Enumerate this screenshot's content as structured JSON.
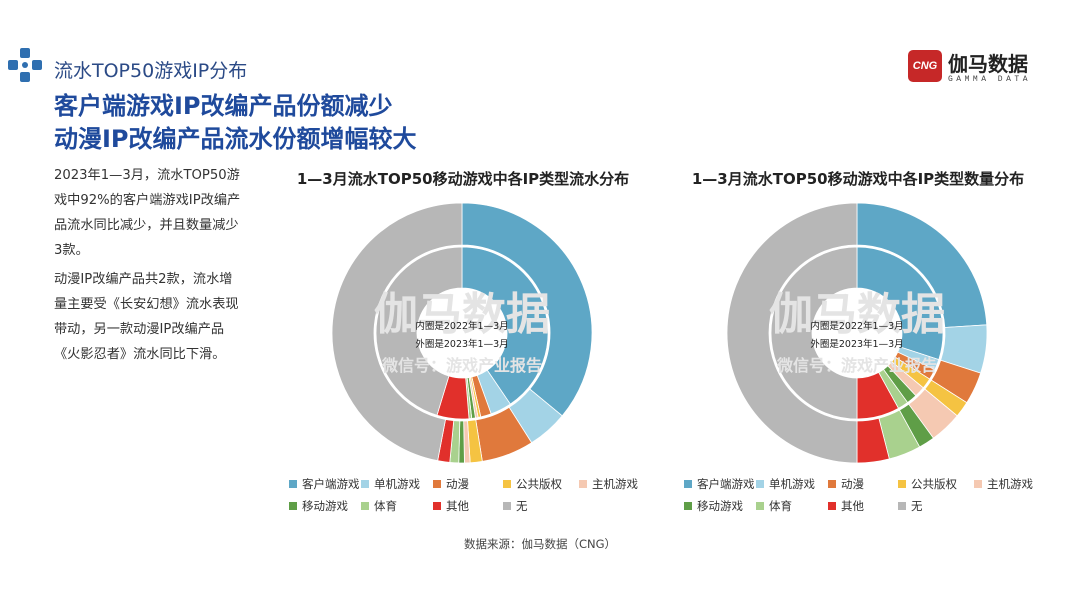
{
  "header": {
    "kicker": "流水TOP50游戏IP分布",
    "headline_1": "客户端游戏IP改编产品份额减少",
    "headline_2": "动漫IP改编产品流水份额增幅较大"
  },
  "brand": {
    "badge": "CNG",
    "name_cn": "伽马数据",
    "name_en": "GAMMA DATA"
  },
  "body_text": {
    "para1": "2023年1—3月，流水TOP50游戏中92%的客户端游戏IP改编产品流水同比减少，并且数量减少3款。",
    "para2": "动漫IP改编产品共2款，流水增量主要受《长安幻想》流水表现带动，另一款动漫IP改编产品《火影忍者》流水同比下滑。"
  },
  "watermark": {
    "main": "伽马数据",
    "sub": "微信号：游戏产业报告"
  },
  "source": "数据来源：伽马数据（CNG）",
  "colors": {
    "客户端游戏": "#5ea7c6",
    "单机游戏": "#a3d3e6",
    "动漫": "#e0793c",
    "公共版权": "#f5c342",
    "主机游戏": "#f5c9b2",
    "移动游戏": "#5f9e47",
    "体育": "#a9d18e",
    "其他": "#e1302b",
    "无": "#b7b7b7"
  },
  "chart_data": [
    {
      "type": "donut",
      "title": "1—3月流水TOP50移动游戏中各IP类型流水分布",
      "inner_label": "内圈是2022年1—3月",
      "outer_label": "外圈是2023年1—3月",
      "categories": [
        "客户端游戏",
        "单机游戏",
        "动漫",
        "公共版权",
        "主机游戏",
        "移动游戏",
        "体育",
        "其他",
        "无"
      ],
      "series": [
        {
          "name": "2022年1—3月",
          "ring": "inner",
          "values": [
            40.5,
            4.0,
            2.0,
            0.5,
            0.5,
            0.7,
            0.5,
            6.0,
            45.3
          ]
        },
        {
          "name": "2023年1—3月",
          "ring": "outer",
          "values": [
            36.0,
            5.0,
            6.5,
            1.5,
            0.7,
            0.7,
            1.1,
            1.5,
            47.0
          ]
        }
      ],
      "legend": "bottom"
    },
    {
      "type": "donut",
      "title": "1—3月流水TOP50移动游戏中各IP类型数量分布",
      "inner_label": "内圈是2022年1—3月",
      "outer_label": "外圈是2023年1—3月",
      "categories": [
        "客户端游戏",
        "单机游戏",
        "动漫",
        "公共版权",
        "主机游戏",
        "移动游戏",
        "体育",
        "其他",
        "无"
      ],
      "series": [
        {
          "name": "2022年1—3月",
          "ring": "inner",
          "values": [
            30,
            2,
            2,
            2,
            2,
            2,
            2,
            8,
            50
          ]
        },
        {
          "name": "2023年1—3月",
          "ring": "outer",
          "values": [
            24,
            6,
            4,
            2,
            4,
            2,
            4,
            4,
            50
          ]
        }
      ],
      "legend": "bottom"
    }
  ]
}
